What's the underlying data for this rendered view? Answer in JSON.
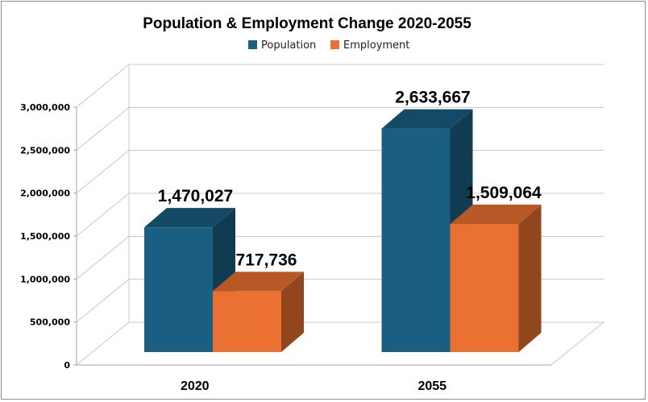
{
  "chart_data": {
    "type": "bar",
    "title": "Population & Employment Change 2020-2055",
    "categories": [
      "2020",
      "2055"
    ],
    "series": [
      {
        "name": "Population",
        "values": [
          1470027,
          2633667
        ],
        "labels": [
          "1,470,027",
          "2,633,667"
        ],
        "color": "#1a5f82"
      },
      {
        "name": "Employment",
        "values": [
          717736,
          1509064
        ],
        "labels": [
          "717,736",
          "1,509,064"
        ],
        "color": "#ea7131"
      }
    ],
    "yticks": [
      "0",
      "500,000",
      "1,000,000",
      "1,500,000",
      "2,000,000",
      "2,500,000",
      "3,000,000"
    ],
    "ylim": [
      0,
      3000000
    ],
    "xlabel": "",
    "ylabel": "",
    "grid": true,
    "legend": "top",
    "style": "3d-clustered-column"
  }
}
